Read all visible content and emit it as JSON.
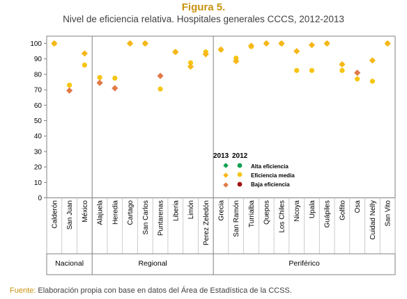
{
  "figure_label": "Figura 5.",
  "title": "Nivel de eficiencia relativa. Hospitales generales CCCS, 2012-2013",
  "source": {
    "label": "Fuente:",
    "text": " Elaboración propia con base en datos del Área de Estadística de la CCSS."
  },
  "legend": {
    "year_2013": "2013",
    "year_2012": "2012",
    "items": [
      "Alta eficiencia",
      "Eficiencia media",
      "Baja eficiencia"
    ]
  },
  "colors": {
    "alta_2013": "#10a050",
    "alta_2012": "#10a050",
    "media_2013": "#f6b71a",
    "media_2012": "#f6c512",
    "baja_2013": "#e07a48",
    "baja_2012": "#a01010"
  },
  "chart_data": {
    "type": "scatter",
    "ylim": [
      0,
      100
    ],
    "yticks": [
      0,
      10,
      20,
      30,
      40,
      50,
      60,
      70,
      80,
      90,
      100
    ],
    "categories": [
      "Calderón",
      "San Juan",
      "México",
      "Alajuela",
      "Heredia",
      "Cartago",
      "San Carlos",
      "Puntarenas",
      "Liberia",
      "Limón",
      "Perez Zeledón",
      "Grecia",
      "San Ramón",
      "Turrialba",
      "Quepos",
      "Los Chiles",
      "Nicoya",
      "Upala",
      "Guápiles",
      "Golfito",
      "Osa",
      "Cuidad Nelly",
      "San Vito"
    ],
    "groups": [
      {
        "name": "Nacional",
        "count": 3
      },
      {
        "name": "Regional",
        "count": 8
      },
      {
        "name": "Periférico",
        "count": 12
      }
    ],
    "series": [
      {
        "name": "2013",
        "marker": "diamond",
        "values": [
          100,
          69.5,
          93.5,
          74.5,
          71,
          100,
          100,
          79,
          94.5,
          85,
          93,
          96,
          88.5,
          98.5,
          100,
          100,
          95,
          99,
          100,
          86.5,
          81,
          89,
          100
        ]
      },
      {
        "name": "2012",
        "marker": "circle",
        "values": [
          100,
          73,
          86,
          78,
          77.5,
          100,
          100,
          70.5,
          94.5,
          87.5,
          94.5,
          96,
          90.5,
          98,
          100,
          100,
          82.5,
          82.5,
          100,
          82.5,
          77,
          75.5,
          100
        ]
      }
    ]
  }
}
